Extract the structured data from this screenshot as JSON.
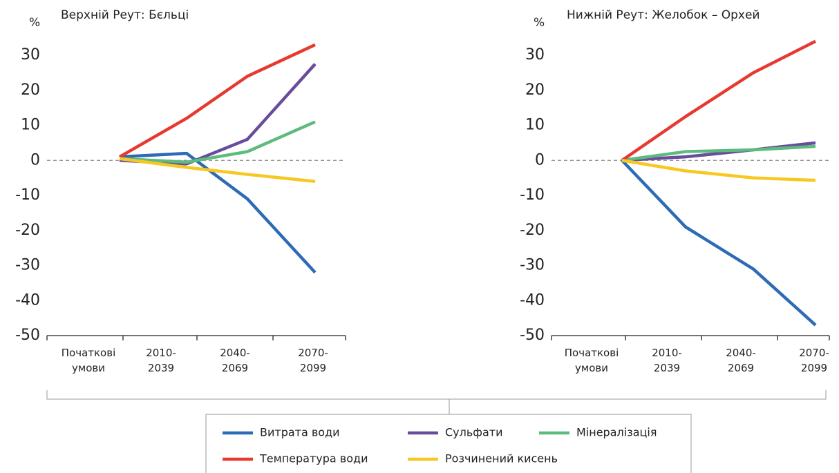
{
  "chart_data": [
    {
      "type": "line",
      "title": "Верхній Реут: Бєльці",
      "ylabel": "%",
      "categories": [
        "Початкові умови",
        "2010-2039",
        "2040-2069",
        "2070-2099"
      ],
      "ylim": [
        -50,
        30
      ],
      "yticks": [
        30,
        20,
        10,
        0,
        -10,
        -20,
        -30,
        -40,
        -50
      ],
      "series": [
        {
          "name": "Витрата води",
          "color": "#2b6cb4",
          "values": [
            1,
            2,
            -11,
            -32
          ]
        },
        {
          "name": "Сульфати",
          "color": "#6a4c9c",
          "values": [
            0,
            -1,
            6,
            27.5
          ]
        },
        {
          "name": "Мінералізація",
          "color": "#5dbb7e",
          "values": [
            0.5,
            -0.5,
            2.5,
            11
          ]
        },
        {
          "name": "Температура води",
          "color": "#e63a30",
          "values": [
            1,
            12,
            24,
            33
          ]
        },
        {
          "name": "Розчинений кисень",
          "color": "#f8c822",
          "values": [
            0.5,
            -2,
            -4,
            -6
          ]
        }
      ]
    },
    {
      "type": "line",
      "title": "Нижній Реут: Желобок – Орхей",
      "ylabel": "%",
      "categories": [
        "Початкові умови",
        "2010-2039",
        "2040-2069",
        "2070-2099"
      ],
      "ylim": [
        -50,
        30
      ],
      "yticks": [
        30,
        20,
        10,
        0,
        -10,
        -20,
        -30,
        -40,
        -50
      ],
      "series": [
        {
          "color": "#2b6cb4",
          "values": [
            0,
            -19,
            -31,
            -47
          ]
        },
        {
          "color": "#6a4c9c",
          "values": [
            0,
            1,
            3,
            5
          ]
        },
        {
          "color": "#5dbb7e",
          "values": [
            0,
            2.5,
            3,
            4
          ]
        },
        {
          "color": "#e63a30",
          "values": [
            0,
            12.5,
            25,
            34
          ]
        },
        {
          "color": "#f8c822",
          "values": [
            0,
            -3,
            -5,
            -5.7
          ]
        }
      ]
    }
  ]
}
